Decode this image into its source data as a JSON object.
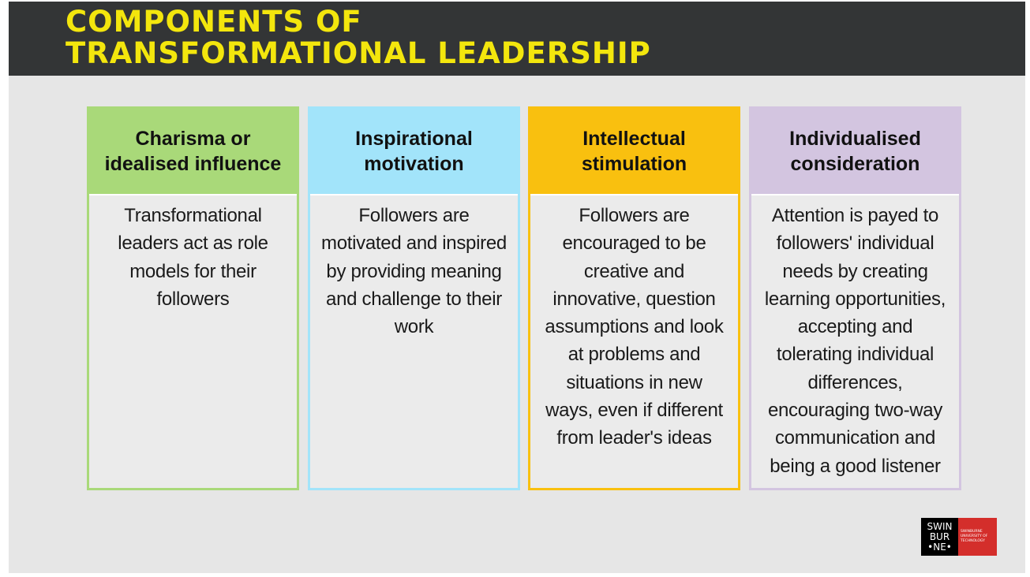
{
  "slide": {
    "title_lines": [
      "COMPONENTS OF",
      "TRANSFORMATIONAL LEADERSHIP"
    ],
    "title_color": "#f3e60d",
    "title_bar_color": "#333536"
  },
  "cards": [
    {
      "heading_lines": [
        "Charisma or",
        "idealised influence"
      ],
      "body_lines": [
        "Transformational",
        "leaders act as role",
        "models for their",
        "followers"
      ],
      "color": "#a9d979"
    },
    {
      "heading_lines": [
        "Inspirational",
        "motivation"
      ],
      "body_lines": [
        "Followers are",
        "motivated and inspired",
        "by providing meaning",
        "and challenge to their",
        "work"
      ],
      "color": "#a2e4fa"
    },
    {
      "heading_lines": [
        "Intellectual",
        "stimulation"
      ],
      "body_lines": [
        "Followers are",
        "encouraged  to be",
        "creative and",
        "innovative, question",
        "assumptions and  look",
        "at problems and",
        "situations in new",
        "ways, even if  different",
        "from leader's ideas"
      ],
      "color": "#f9c00f"
    },
    {
      "heading_lines": [
        "Individualised",
        "consideration"
      ],
      "body_lines": [
        "Attention is payed to",
        "followers' individual",
        "needs by creating",
        "learning opportunities,",
        "accepting and",
        "tolerating individual",
        "differences,",
        "encouraging two-way",
        "communication and",
        "being a good listener"
      ],
      "color": "#d3c5e0"
    }
  ],
  "logo": {
    "mark_lines": [
      "SWIN",
      "BUR",
      "•NE•"
    ],
    "name_lines": [
      "SWINBURNE",
      "UNIVERSITY OF",
      "TECHNOLOGY"
    ],
    "mark_color": "#000000",
    "name_color": "#d42e2b"
  }
}
